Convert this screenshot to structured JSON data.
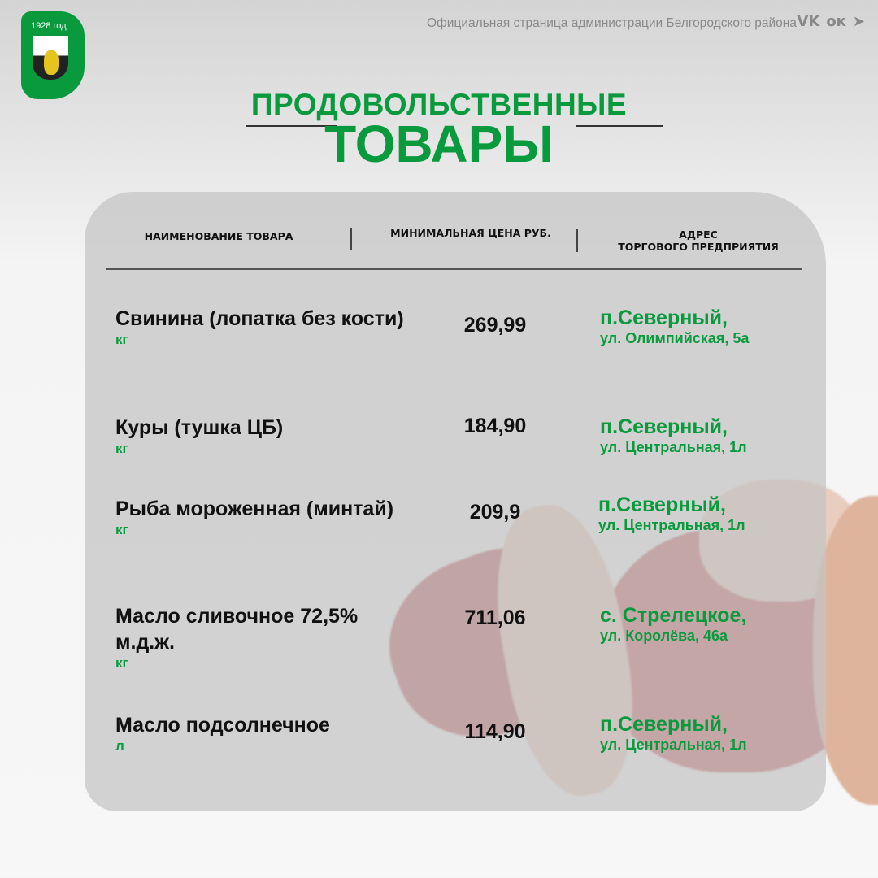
{
  "logo": {
    "year": "1928 год"
  },
  "header": {
    "org": "Официальная страница администрации Белгородского района",
    "social": [
      {
        "icon": "vk-icon",
        "glyph": "VK"
      },
      {
        "icon": "odnoklassniki-icon",
        "glyph": "ок"
      },
      {
        "icon": "telegram-icon",
        "glyph": "➤"
      }
    ]
  },
  "title": {
    "line1": "ПРОДОВОЛЬСТВЕННЫЕ",
    "line2": "ТОВАРЫ"
  },
  "colors": {
    "accent": "#0a9a3e"
  },
  "table": {
    "columns": [
      "НАИМЕНОВАНИЕ ТОВАРА",
      "МИНИМАЛЬНАЯ ЦЕНА РУБ.",
      "АДРЕС",
      "ТОРГОВОГО ПРЕДПРИЯТИЯ"
    ],
    "rows": [
      {
        "name": "Свинина (лопатка без кости)",
        "unit": "кг",
        "price": "269,99",
        "place": "п.Северный,",
        "street": "ул. Олимпийская, 5а"
      },
      {
        "name": "Куры (тушка ЦБ)",
        "unit": "кг",
        "price": "184,90",
        "place": "п.Северный,",
        "street": "ул. Центральная, 1л"
      },
      {
        "name": "Рыба мороженная (минтай)",
        "unit": "кг",
        "price": "209,9",
        "place": "п.Северный,",
        "street": "ул. Центральная, 1л"
      },
      {
        "name": "Масло сливочное 72,5% м.д.ж.",
        "unit": "кг",
        "price": "711,06",
        "place": "с. Стрелецкое,",
        "street": "ул. Королёва, 46а"
      },
      {
        "name": "Масло подсолнечное",
        "unit": "л",
        "price": "114,90",
        "place": "п.Северный,",
        "street": "ул. Центральная, 1л"
      }
    ]
  }
}
